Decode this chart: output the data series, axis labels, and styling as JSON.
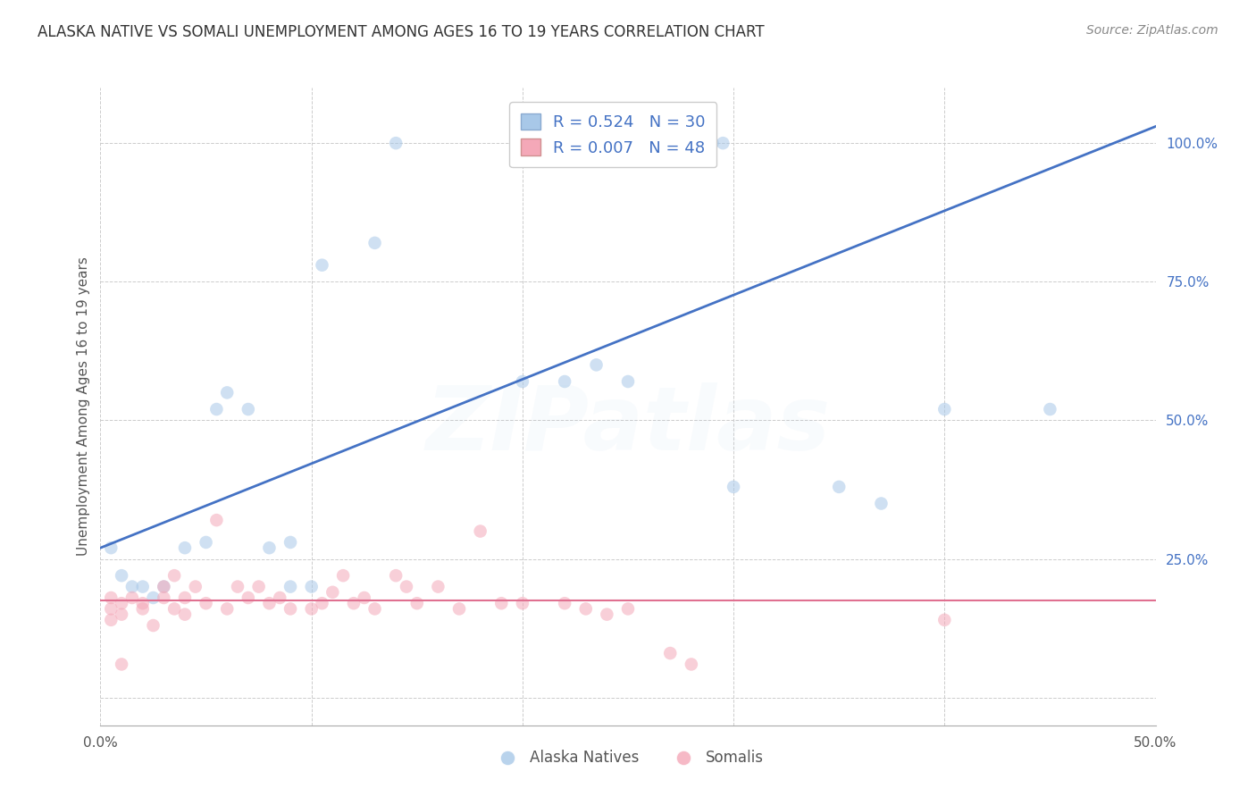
{
  "title": "ALASKA NATIVE VS SOMALI UNEMPLOYMENT AMONG AGES 16 TO 19 YEARS CORRELATION CHART",
  "source": "Source: ZipAtlas.com",
  "ylabel": "Unemployment Among Ages 16 to 19 years",
  "xlim": [
    0.0,
    0.5
  ],
  "ylim": [
    -0.05,
    1.1
  ],
  "xticks": [
    0.0,
    0.1,
    0.2,
    0.3,
    0.4,
    0.5
  ],
  "xticklabels": [
    "0.0%",
    "",
    "",
    "",
    "",
    "50.0%"
  ],
  "yticks": [
    0.0,
    0.25,
    0.5,
    0.75,
    1.0
  ],
  "yticklabels": [
    "",
    "25.0%",
    "50.0%",
    "75.0%",
    "100.0%"
  ],
  "alaska_R": "0.524",
  "alaska_N": "30",
  "somali_R": "0.007",
  "somali_N": "48",
  "alaska_color": "#A8C8E8",
  "somali_color": "#F4A8B8",
  "alaska_line_color": "#4472C4",
  "somali_line_color": "#E07090",
  "grid_color": "#CCCCCC",
  "background_color": "#FFFFFF",
  "title_color": "#333333",
  "tick_color": "#4472C4",
  "alaska_scatter_x": [
    0.005,
    0.01,
    0.015,
    0.02,
    0.025,
    0.03,
    0.04,
    0.05,
    0.055,
    0.06,
    0.07,
    0.08,
    0.09,
    0.09,
    0.1,
    0.105,
    0.13,
    0.14,
    0.2,
    0.22,
    0.235,
    0.25,
    0.285,
    0.29,
    0.295,
    0.3,
    0.35,
    0.37,
    0.4,
    0.45
  ],
  "alaska_scatter_y": [
    0.27,
    0.22,
    0.2,
    0.2,
    0.18,
    0.2,
    0.27,
    0.28,
    0.52,
    0.55,
    0.52,
    0.27,
    0.28,
    0.2,
    0.2,
    0.78,
    0.82,
    1.0,
    0.57,
    0.57,
    0.6,
    0.57,
    1.0,
    1.0,
    1.0,
    0.38,
    0.38,
    0.35,
    0.52,
    0.52
  ],
  "somali_scatter_x": [
    0.005,
    0.005,
    0.005,
    0.01,
    0.01,
    0.015,
    0.02,
    0.02,
    0.025,
    0.03,
    0.03,
    0.035,
    0.035,
    0.04,
    0.04,
    0.045,
    0.05,
    0.055,
    0.06,
    0.065,
    0.07,
    0.075,
    0.08,
    0.085,
    0.09,
    0.1,
    0.105,
    0.11,
    0.115,
    0.12,
    0.125,
    0.13,
    0.14,
    0.145,
    0.15,
    0.16,
    0.17,
    0.18,
    0.19,
    0.2,
    0.22,
    0.23,
    0.24,
    0.25,
    0.27,
    0.28,
    0.4,
    0.01
  ],
  "somali_scatter_y": [
    0.18,
    0.16,
    0.14,
    0.17,
    0.15,
    0.18,
    0.17,
    0.16,
    0.13,
    0.18,
    0.2,
    0.16,
    0.22,
    0.15,
    0.18,
    0.2,
    0.17,
    0.32,
    0.16,
    0.2,
    0.18,
    0.2,
    0.17,
    0.18,
    0.16,
    0.16,
    0.17,
    0.19,
    0.22,
    0.17,
    0.18,
    0.16,
    0.22,
    0.2,
    0.17,
    0.2,
    0.16,
    0.3,
    0.17,
    0.17,
    0.17,
    0.16,
    0.15,
    0.16,
    0.08,
    0.06,
    0.14,
    0.06
  ],
  "alaska_trend_x": [
    0.0,
    0.5
  ],
  "alaska_trend_y": [
    0.27,
    1.03
  ],
  "somali_trend_y": [
    0.175,
    0.175
  ],
  "marker_size": 110,
  "marker_alpha": 0.55,
  "watermark_text": "ZIPatlas",
  "watermark_alpha": 0.07,
  "watermark_fontsize": 72,
  "watermark_color": "#A8C8E8"
}
